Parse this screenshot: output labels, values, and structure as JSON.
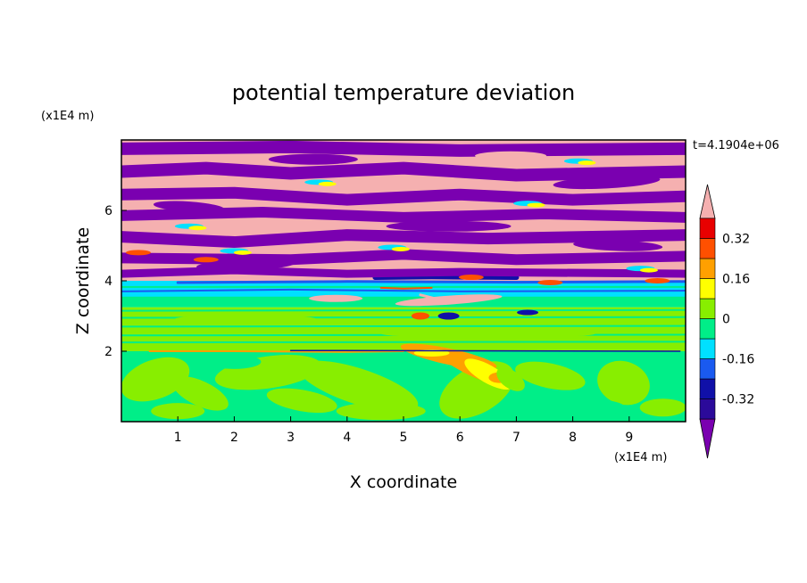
{
  "chart_data": {
    "type": "heatmap",
    "title": "potential temperature deviation",
    "xlabel": "X coordinate",
    "ylabel": "Z coordinate",
    "x_unit": "(x1E4 m)",
    "y_unit": "(x1E4 m)",
    "time_label": "t=4.1904e+06",
    "xlim": [
      0,
      10
    ],
    "ylim": [
      0,
      8
    ],
    "x_ticks": [
      "1",
      "2",
      "3",
      "4",
      "5",
      "6",
      "7",
      "8",
      "9"
    ],
    "y_ticks": [
      "2",
      "4",
      "6"
    ],
    "colorbar": {
      "levels": [
        -0.4,
        -0.32,
        -0.24,
        -0.16,
        -0.08,
        0,
        0.08,
        0.16,
        0.24,
        0.32,
        0.4
      ],
      "colors": [
        "#2b0a9a",
        "#1010a8",
        "#1a5af0",
        "#00e0ff",
        "#00ee88",
        "#88ee00",
        "#ffff00",
        "#ffa000",
        "#ff5000",
        "#e80000"
      ],
      "under_color": "#7a00b0",
      "over_color": "#f5b0b0",
      "tick_labels": [
        "0.32",
        "0.16",
        "0",
        "-0.16",
        "-0.32"
      ],
      "tick_values": [
        0.32,
        0.16,
        0,
        -0.16,
        -0.32
      ]
    },
    "regions": [
      {
        "z": [
          0,
          2.0
        ],
        "pattern": "mixed green/light-green field with warm (orange/yellow) plume near x=5.5-6.5"
      },
      {
        "z": [
          2.0,
          3.2
        ],
        "pattern": "light-green/green horizontal layers"
      },
      {
        "z": [
          3.2,
          4.0
        ],
        "pattern": "cyan/blue banded layer with thin red/orange filaments"
      },
      {
        "z": [
          4.0,
          8.0
        ],
        "pattern": "alternating pink (over) and purple (under) streaks"
      }
    ],
    "grid": false,
    "legend": "colorbar right"
  }
}
